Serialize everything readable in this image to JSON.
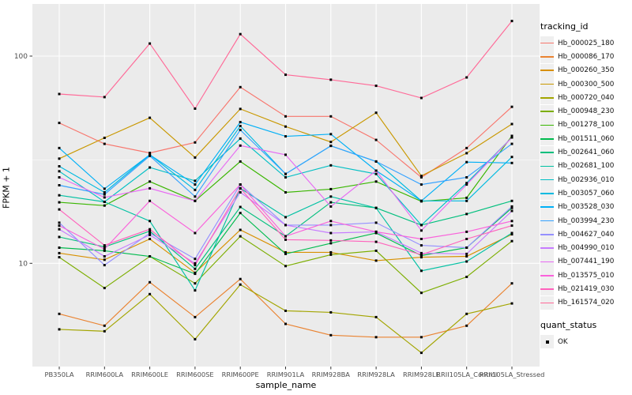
{
  "chart_data": {
    "type": "line",
    "title": "",
    "xlabel": "sample_name",
    "ylabel": "FPKM + 1",
    "yscale": "log10",
    "y_major_ticks": [
      10,
      100
    ],
    "y_minor_ticks": [
      31.6
    ],
    "ylim_log": [
      3.2,
      178
    ],
    "panel_bg": "#EBEBEB",
    "grid_color": "#FFFFFF",
    "tick_label_color": "#4D4D4D",
    "marker": "black-square",
    "legend_title": "tracking_id",
    "quant_legend": {
      "title": "quant_status",
      "items": [
        {
          "label": "OK"
        }
      ]
    },
    "categories": [
      "PB350LA",
      "RRIM600LA",
      "RRIM600LE",
      "RRIM600SE",
      "RRIM600PE",
      "RRIM901LA",
      "RRIM928BA",
      "RRIM928LA",
      "RRIM928LE",
      "RRII105LA_Control",
      "RRII105LA_Stressed"
    ],
    "series": [
      {
        "name": "Hb_000025_180",
        "color": "#F8766D",
        "values": [
          47.6,
          37.7,
          34.1,
          38.3,
          70.8,
          51.2,
          51.2,
          39.4,
          26.0,
          36.0,
          56.9
        ]
      },
      {
        "name": "Hb_000086_170",
        "color": "#EA8331",
        "values": [
          5.7,
          5.0,
          8.1,
          5.5,
          8.4,
          5.1,
          4.5,
          4.4,
          4.4,
          5.0,
          8.0
        ]
      },
      {
        "name": "Hb_000260_350",
        "color": "#D89000",
        "values": [
          11.2,
          10.4,
          13.1,
          9.0,
          14.5,
          11.3,
          11.3,
          10.3,
          10.7,
          10.8,
          13.8
        ]
      },
      {
        "name": "Hb_000300_500",
        "color": "#C99800",
        "values": [
          32.0,
          40.3,
          50.4,
          32.4,
          55.6,
          45.7,
          38.5,
          53.3,
          26.4,
          34.0,
          47.0
        ]
      },
      {
        "name": "Hb_000720_040",
        "color": "#A3A500",
        "values": [
          4.8,
          4.7,
          7.1,
          4.3,
          7.9,
          5.9,
          5.8,
          5.5,
          3.7,
          5.7,
          6.4
        ]
      },
      {
        "name": "Hb_000948_230",
        "color": "#7CAE00",
        "values": [
          10.7,
          7.6,
          10.8,
          8.0,
          13.5,
          9.7,
          11.0,
          11.5,
          7.2,
          8.6,
          12.8
        ]
      },
      {
        "name": "Hb_001278_100",
        "color": "#39B600",
        "values": [
          19.7,
          19.0,
          24.8,
          20.0,
          31.0,
          22.0,
          22.8,
          24.8,
          19.9,
          20.7,
          41.2
        ]
      },
      {
        "name": "Hb_001511_060",
        "color": "#00BB4E",
        "values": [
          11.9,
          11.5,
          10.8,
          8.9,
          17.5,
          11.1,
          12.5,
          14.0,
          10.9,
          11.9,
          18.5
        ]
      },
      {
        "name": "Hb_002641_060",
        "color": "#00BF7D",
        "values": [
          13.4,
          12.0,
          14.3,
          9.4,
          18.7,
          13.5,
          19.7,
          18.5,
          15.3,
          17.3,
          20.0
        ]
      },
      {
        "name": "Hb_002681_100",
        "color": "#00C1A3",
        "values": [
          21.3,
          19.8,
          16.0,
          7.4,
          23.0,
          16.7,
          21.0,
          18.5,
          9.2,
          10.2,
          14.0
        ]
      },
      {
        "name": "Hb_002936_010",
        "color": "#00BFC4",
        "values": [
          27.8,
          19.8,
          29.0,
          25.0,
          40.0,
          26.0,
          29.7,
          27.0,
          15.3,
          24.4,
          40.5
        ]
      },
      {
        "name": "Hb_003057_060",
        "color": "#00BAE0",
        "values": [
          29.4,
          22.0,
          33.4,
          22.6,
          46.0,
          27.0,
          36.9,
          31.0,
          20.0,
          20.0,
          32.6
        ]
      },
      {
        "name": "Hb_003528_030",
        "color": "#00B0F6",
        "values": [
          36.0,
          22.9,
          33.4,
          24.0,
          48.0,
          41.0,
          42.0,
          28.0,
          20.0,
          30.8,
          30.5
        ]
      },
      {
        "name": "Hb_003994_230",
        "color": "#35A2FF",
        "values": [
          23.8,
          21.5,
          33.0,
          21.0,
          44.0,
          27.0,
          36.9,
          31.0,
          24.0,
          26.0,
          37.7
        ]
      },
      {
        "name": "Hb_004627_040",
        "color": "#9590FF",
        "values": [
          15.7,
          9.8,
          14.0,
          10.5,
          24.0,
          15.3,
          15.3,
          15.7,
          12.2,
          11.9,
          18.8
        ]
      },
      {
        "name": "Hb_004990_010",
        "color": "#C77CFF",
        "values": [
          14.6,
          10.8,
          13.7,
          10.0,
          22.0,
          15.3,
          14.0,
          14.2,
          11.2,
          11.1,
          17.9
        ]
      },
      {
        "name": "Hb_007441_190",
        "color": "#E76BF3",
        "values": [
          26.0,
          20.8,
          23.0,
          20.0,
          37.0,
          33.4,
          18.8,
          28.0,
          14.4,
          24.0,
          40.5
        ]
      },
      {
        "name": "Hb_013575_010",
        "color": "#FA62DB",
        "values": [
          15.2,
          11.7,
          20.0,
          14.0,
          24.0,
          13.5,
          16.0,
          14.2,
          13.1,
          14.2,
          16.0
        ]
      },
      {
        "name": "Hb_021419_030",
        "color": "#FF62BC",
        "values": [
          18.2,
          12.2,
          14.6,
          9.8,
          23.0,
          13.0,
          12.9,
          12.7,
          11.0,
          13.1,
          15.2
        ]
      },
      {
        "name": "Hb_161574_020",
        "color": "#FF6A98",
        "values": [
          65.6,
          63.4,
          115.0,
          55.8,
          127.6,
          81.3,
          76.9,
          71.9,
          62.8,
          78.9,
          147.6
        ]
      }
    ]
  }
}
